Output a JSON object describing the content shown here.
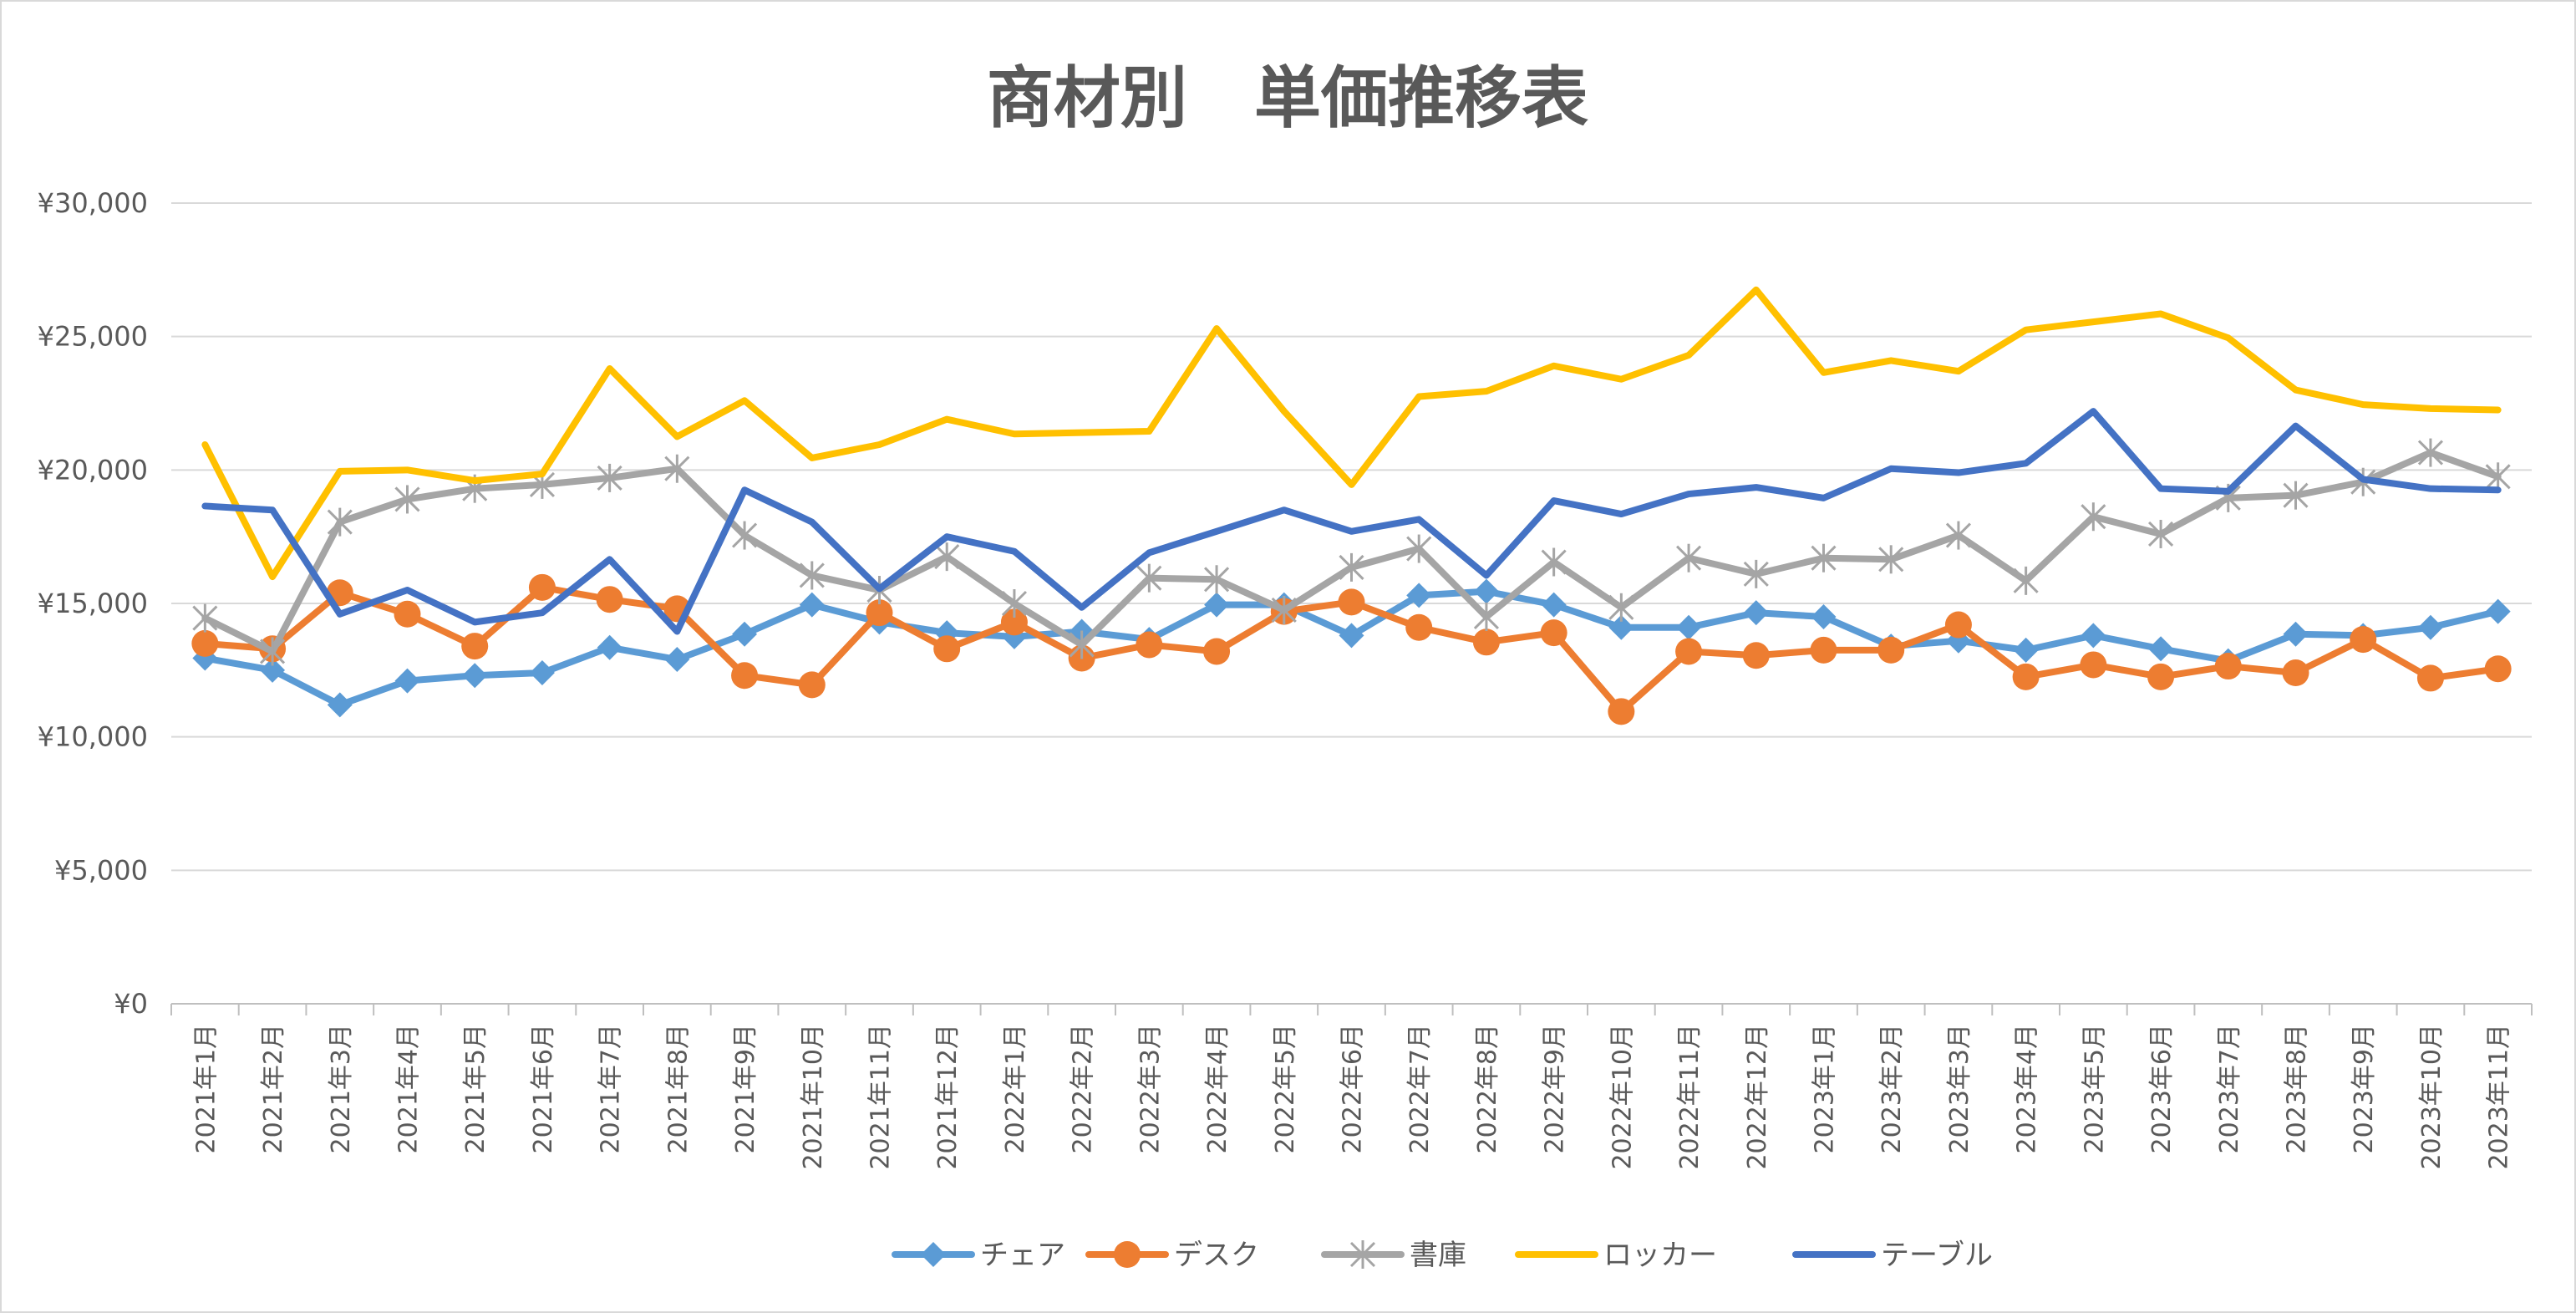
{
  "chart_data": {
    "type": "line",
    "title": "商材別　単価推移表",
    "xlabel": "",
    "ylabel": "",
    "ylim": [
      0,
      30000
    ],
    "yticks": [
      0,
      5000,
      10000,
      15000,
      20000,
      25000,
      30000
    ],
    "ytick_labels": [
      "¥0",
      "¥5,000",
      "¥10,000",
      "¥15,000",
      "¥20,000",
      "¥25,000",
      "¥30,000"
    ],
    "grid": true,
    "legend_position": "bottom",
    "categories": [
      "2021年1月",
      "2021年2月",
      "2021年3月",
      "2021年4月",
      "2021年5月",
      "2021年6月",
      "2021年7月",
      "2021年8月",
      "2021年9月",
      "2021年10月",
      "2021年11月",
      "2021年12月",
      "2022年1月",
      "2022年2月",
      "2022年3月",
      "2022年4月",
      "2022年5月",
      "2022年6月",
      "2022年7月",
      "2022年8月",
      "2022年9月",
      "2022年10月",
      "2022年11月",
      "2022年12月",
      "2023年1月",
      "2023年2月",
      "2023年3月",
      "2023年4月",
      "2023年5月",
      "2023年6月",
      "2023年7月",
      "2023年8月",
      "2023年9月",
      "2023年10月",
      "2023年11月"
    ],
    "series": [
      {
        "name": "チェア",
        "color": "#5b9bd5",
        "marker": "diamond",
        "values": [
          12950,
          12500,
          11200,
          12100,
          12300,
          12400,
          13350,
          12900,
          13850,
          14950,
          14300,
          13900,
          13750,
          13950,
          13650,
          14950,
          14950,
          13800,
          15300,
          15450,
          14950,
          14100,
          14100,
          14650,
          14500,
          13400,
          13600,
          13250,
          13800,
          13300,
          12850,
          13850,
          13800,
          14100,
          14700
        ]
      },
      {
        "name": "デスク",
        "color": "#ed7d31",
        "marker": "circle",
        "values": [
          13500,
          13300,
          15400,
          14600,
          13400,
          15600,
          15150,
          14800,
          12300,
          11950,
          14650,
          13300,
          14300,
          12950,
          13450,
          13200,
          14700,
          15050,
          14100,
          13550,
          13900,
          10950,
          13200,
          13050,
          13250,
          13250,
          14200,
          12250,
          12700,
          12250,
          12650,
          12400,
          13650,
          12200,
          12550
        ]
      },
      {
        "name": "書庫",
        "color": "#a5a5a5",
        "marker": "star",
        "values": [
          14450,
          13200,
          18050,
          18900,
          19300,
          19450,
          19700,
          20050,
          17550,
          16050,
          15500,
          16750,
          15000,
          13450,
          15950,
          15900,
          14750,
          16350,
          17050,
          14500,
          16550,
          14850,
          16700,
          16100,
          16700,
          16650,
          17550,
          15850,
          18250,
          17600,
          18950,
          19050,
          19550,
          20650,
          19750
        ]
      },
      {
        "name": "ロッカー",
        "color": "#ffc000",
        "marker": "none",
        "values": [
          20950,
          16000,
          19950,
          20000,
          19600,
          19850,
          23800,
          21250,
          22600,
          20450,
          20950,
          21900,
          21350,
          21400,
          21450,
          25300,
          22200,
          19450,
          22750,
          22950,
          23900,
          23400,
          24300,
          26750,
          23650,
          24100,
          23700,
          25250,
          25550,
          25850,
          24950,
          23000,
          22450,
          22300,
          22250
        ]
      },
      {
        "name": "テーブル",
        "color": "#4472c4",
        "marker": "none",
        "values": [
          18650,
          18500,
          14600,
          15500,
          14300,
          14650,
          16650,
          13950,
          19250,
          18050,
          15550,
          17500,
          16950,
          14850,
          16900,
          17700,
          18500,
          17700,
          18150,
          16050,
          18850,
          18350,
          19100,
          19350,
          18950,
          20050,
          19900,
          20250,
          22200,
          19300,
          19200,
          21650,
          19650,
          19300,
          19250
        ]
      }
    ]
  }
}
